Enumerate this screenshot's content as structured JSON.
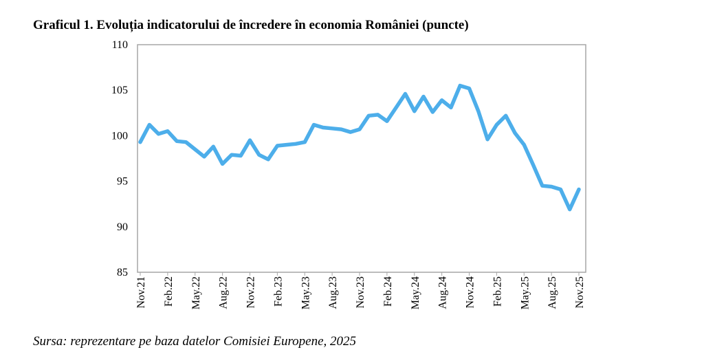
{
  "chart_data": {
    "type": "line",
    "title": "Graficul 1. Evoluția indicatorului de încredere în economia României (puncte)",
    "source": "Sursa: reprezentare pe baza datelor Comisiei Europene, 2025",
    "xlabel": "",
    "ylabel": "",
    "ylim": [
      85,
      110
    ],
    "yticks": [
      85,
      90,
      95,
      100,
      105,
      110
    ],
    "xtick_labels": [
      "Nov.21",
      "Feb.22",
      "May.22",
      "Aug.22",
      "Nov.22",
      "Feb.23",
      "May.23",
      "Aug.23",
      "Nov.23",
      "Feb.24",
      "May.24",
      "Aug.24",
      "Nov.24",
      "Feb.25",
      "May.25",
      "Aug.25",
      "Nov.25"
    ],
    "x": [
      "Nov.21",
      "Dec.21",
      "Jan.22",
      "Feb.22",
      "Mar.22",
      "Apr.22",
      "May.22",
      "Jun.22",
      "Jul.22",
      "Aug.22",
      "Sep.22",
      "Oct.22",
      "Nov.22",
      "Dec.22",
      "Jan.23",
      "Feb.23",
      "Mar.23",
      "Apr.23",
      "May.23",
      "Jun.23",
      "Jul.23",
      "Aug.23",
      "Sep.23",
      "Oct.23",
      "Nov.23",
      "Dec.23",
      "Jan.24",
      "Feb.24",
      "Mar.24",
      "Apr.24",
      "May.24",
      "Jun.24",
      "Jul.24",
      "Aug.24",
      "Sep.24",
      "Oct.24",
      "Nov.24",
      "Dec.24",
      "Jan.25",
      "Feb.25",
      "Mar.25",
      "Apr.25",
      "May.25",
      "Jun.25",
      "Jul.25",
      "Aug.25",
      "Sep.25",
      "Oct.25",
      "Nov.25"
    ],
    "values": [
      99.3,
      101.2,
      100.2,
      100.5,
      99.4,
      99.3,
      98.5,
      97.7,
      98.8,
      96.9,
      97.9,
      97.8,
      99.5,
      97.9,
      97.4,
      98.9,
      99.0,
      99.1,
      99.3,
      101.2,
      100.9,
      100.8,
      100.7,
      100.4,
      100.7,
      102.2,
      102.3,
      101.6,
      103.1,
      104.6,
      102.7,
      104.3,
      102.6,
      103.9,
      103.1,
      105.5,
      105.2,
      102.7,
      99.6,
      101.2,
      102.2,
      100.3,
      99.0,
      96.8,
      94.5,
      94.4,
      94.1,
      91.9,
      94.1
    ],
    "grid": false,
    "legend": "none",
    "line_color": "#4daeea",
    "axis_color": "#a6a6a6"
  }
}
